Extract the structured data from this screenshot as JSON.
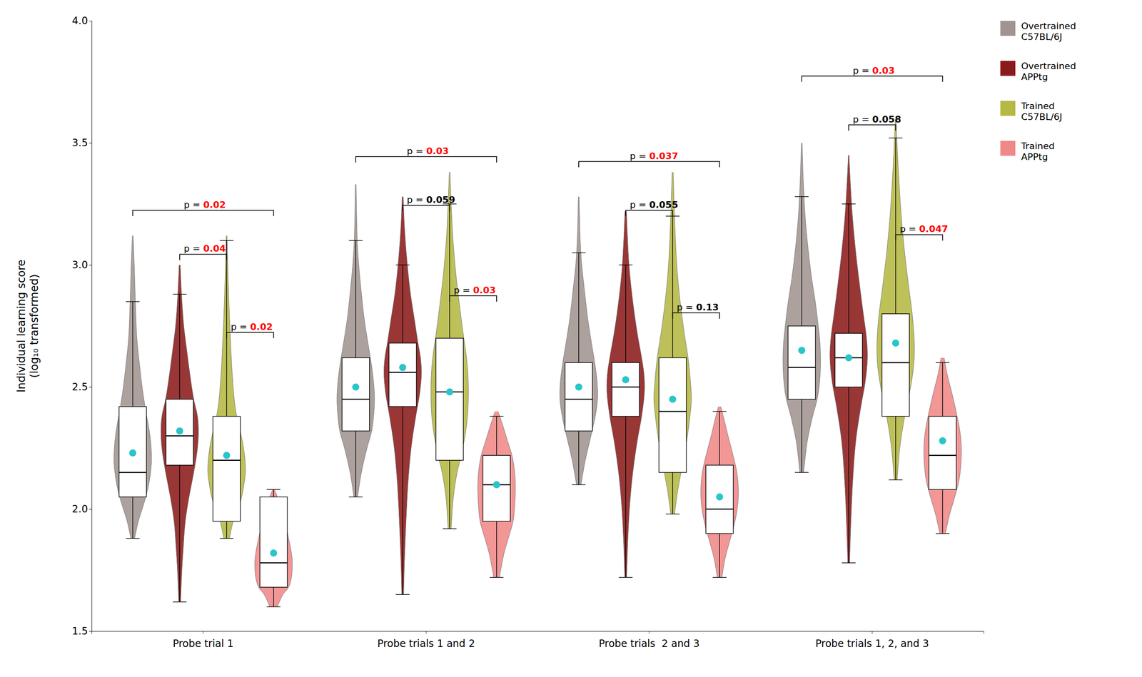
{
  "chart_data": {
    "type": "violin",
    "ylabel": "Individual learning score\n(log₁₀ transformed)",
    "categories": [
      "Probe trial 1",
      "Probe trials 1 and 2",
      "Probe trials  2 and 3",
      "Probe trials 1, 2, and 3"
    ],
    "ylim": [
      1.5,
      4.0
    ],
    "yticks": [
      1.5,
      {
        "value": 2,
        "label": "2.0"
      },
      2.5,
      {
        "value": 3,
        "label": "3.0"
      },
      3.5,
      {
        "value": 4,
        "label": "4.0"
      }
    ],
    "grid": false,
    "legend": "upper right",
    "color": "#29c5c8",
    "series": [
      {
        "name": "Overtrained\nC57BL/6J",
        "color": "#a09490",
        "values": [
          {
            "median": 2.15,
            "q1": 2.05,
            "q3": 2.42,
            "mean": 2.23,
            "whislo": 1.88,
            "whishi": 2.85,
            "kde_y": [
              1.88,
              1.95,
              2.0,
              2.05,
              2.1,
              2.15,
              2.2,
              2.25,
              2.3,
              2.35,
              2.4,
              2.5,
              2.6,
              2.7,
              2.85,
              3.0,
              3.12
            ],
            "kde_w": [
              0.1,
              0.3,
              0.5,
              0.7,
              0.85,
              0.95,
              1.0,
              0.98,
              0.92,
              0.82,
              0.7,
              0.5,
              0.35,
              0.22,
              0.14,
              0.08,
              0.02
            ]
          },
          {
            "median": 2.45,
            "q1": 2.32,
            "q3": 2.62,
            "mean": 2.5,
            "whislo": 2.05,
            "whishi": 3.1,
            "kde_y": [
              2.05,
              2.15,
              2.25,
              2.32,
              2.38,
              2.45,
              2.52,
              2.6,
              2.68,
              2.78,
              2.9,
              3.0,
              3.1,
              3.33
            ],
            "kde_w": [
              0.1,
              0.3,
              0.6,
              0.85,
              0.95,
              1.0,
              0.95,
              0.82,
              0.65,
              0.45,
              0.28,
              0.16,
              0.08,
              0.02
            ]
          },
          {
            "median": 2.45,
            "q1": 2.32,
            "q3": 2.6,
            "mean": 2.5,
            "whislo": 2.1,
            "whishi": 3.05,
            "kde_y": [
              2.1,
              2.2,
              2.3,
              2.38,
              2.45,
              2.52,
              2.6,
              2.68,
              2.78,
              2.9,
              3.0,
              3.1,
              3.28
            ],
            "kde_w": [
              0.12,
              0.35,
              0.65,
              0.88,
              1.0,
              0.98,
              0.85,
              0.68,
              0.48,
              0.3,
              0.16,
              0.08,
              0.02
            ]
          },
          {
            "median": 2.58,
            "q1": 2.45,
            "q3": 2.75,
            "mean": 2.65,
            "whislo": 2.15,
            "whishi": 3.28,
            "kde_y": [
              2.15,
              2.28,
              2.38,
              2.45,
              2.52,
              2.6,
              2.68,
              2.75,
              2.85,
              2.95,
              3.08,
              3.2,
              3.35,
              3.5
            ],
            "kde_w": [
              0.1,
              0.3,
              0.58,
              0.82,
              0.95,
              1.0,
              0.97,
              0.88,
              0.72,
              0.52,
              0.32,
              0.18,
              0.08,
              0.02
            ]
          }
        ]
      },
      {
        "name": "Overtrained\nAPPtg",
        "color": "#8b1a1a",
        "values": [
          {
            "median": 2.3,
            "q1": 2.18,
            "q3": 2.45,
            "mean": 2.32,
            "whislo": 1.62,
            "whishi": 2.88,
            "kde_y": [
              1.62,
              1.75,
              1.85,
              1.95,
              2.05,
              2.15,
              2.25,
              2.32,
              2.38,
              2.45,
              2.55,
              2.65,
              2.75,
              2.88,
              3.0
            ],
            "kde_w": [
              0.05,
              0.12,
              0.2,
              0.3,
              0.5,
              0.75,
              0.95,
              1.0,
              0.95,
              0.75,
              0.55,
              0.38,
              0.22,
              0.1,
              0.03
            ]
          },
          {
            "median": 2.56,
            "q1": 2.42,
            "q3": 2.68,
            "mean": 2.58,
            "whislo": 1.65,
            "whishi": 3.0,
            "kde_y": [
              1.65,
              1.8,
              1.95,
              2.1,
              2.25,
              2.38,
              2.48,
              2.56,
              2.62,
              2.68,
              2.78,
              2.88,
              3.0,
              3.15,
              3.28
            ],
            "kde_w": [
              0.05,
              0.1,
              0.18,
              0.28,
              0.45,
              0.7,
              0.92,
              1.0,
              0.95,
              0.82,
              0.62,
              0.42,
              0.25,
              0.1,
              0.03
            ]
          },
          {
            "median": 2.5,
            "q1": 2.38,
            "q3": 2.6,
            "mean": 2.53,
            "whislo": 1.72,
            "whishi": 3.0,
            "kde_y": [
              1.72,
              1.88,
              2.02,
              2.15,
              2.28,
              2.38,
              2.48,
              2.55,
              2.62,
              2.72,
              2.85,
              3.0,
              3.22
            ],
            "kde_w": [
              0.05,
              0.12,
              0.22,
              0.38,
              0.62,
              0.85,
              1.0,
              0.98,
              0.85,
              0.62,
              0.38,
              0.18,
              0.04
            ]
          },
          {
            "median": 2.62,
            "q1": 2.5,
            "q3": 2.72,
            "mean": 2.62,
            "whislo": 1.78,
            "whishi": 3.25,
            "kde_y": [
              1.78,
              1.95,
              2.12,
              2.28,
              2.42,
              2.52,
              2.62,
              2.7,
              2.8,
              2.92,
              3.05,
              3.2,
              3.35,
              3.45
            ],
            "kde_w": [
              0.05,
              0.12,
              0.22,
              0.38,
              0.65,
              0.88,
              1.0,
              0.95,
              0.78,
              0.58,
              0.38,
              0.2,
              0.08,
              0.02
            ]
          }
        ]
      },
      {
        "name": "Trained\nC57BL/6J",
        "color": "#b5b842",
        "values": [
          {
            "median": 2.2,
            "q1": 1.95,
            "q3": 2.38,
            "mean": 2.22,
            "whislo": 1.88,
            "whishi": 3.1,
            "kde_y": [
              1.88,
              1.95,
              2.0,
              2.05,
              2.1,
              2.15,
              2.2,
              2.25,
              2.3,
              2.35,
              2.42,
              2.55,
              2.7,
              2.85,
              3.0,
              3.12
            ],
            "kde_w": [
              0.15,
              0.35,
              0.6,
              0.8,
              0.92,
              1.0,
              0.98,
              0.9,
              0.78,
              0.62,
              0.45,
              0.3,
              0.2,
              0.12,
              0.06,
              0.02
            ]
          },
          {
            "median": 2.48,
            "q1": 2.2,
            "q3": 2.7,
            "mean": 2.48,
            "whislo": 1.92,
            "whishi": 3.25,
            "kde_y": [
              1.92,
              2.05,
              2.15,
              2.22,
              2.3,
              2.38,
              2.48,
              2.58,
              2.65,
              2.72,
              2.82,
              2.95,
              3.1,
              3.25,
              3.38
            ],
            "kde_w": [
              0.08,
              0.2,
              0.4,
              0.62,
              0.82,
              0.95,
              1.0,
              0.95,
              0.85,
              0.72,
              0.55,
              0.35,
              0.18,
              0.08,
              0.02
            ]
          },
          {
            "median": 2.4,
            "q1": 2.15,
            "q3": 2.62,
            "mean": 2.45,
            "whislo": 1.98,
            "whishi": 3.2,
            "kde_y": [
              1.98,
              2.08,
              2.18,
              2.28,
              2.38,
              2.45,
              2.52,
              2.62,
              2.72,
              2.85,
              3.0,
              3.2,
              3.38
            ],
            "kde_w": [
              0.1,
              0.28,
              0.52,
              0.75,
              0.92,
              1.0,
              0.95,
              0.82,
              0.62,
              0.4,
              0.22,
              0.1,
              0.03
            ]
          },
          {
            "median": 2.6,
            "q1": 2.38,
            "q3": 2.8,
            "mean": 2.68,
            "whislo": 2.12,
            "whishi": 3.52,
            "kde_y": [
              2.12,
              2.25,
              2.38,
              2.48,
              2.58,
              2.65,
              2.72,
              2.8,
              2.92,
              3.05,
              3.2,
              3.38,
              3.52,
              3.6
            ],
            "kde_w": [
              0.08,
              0.22,
              0.48,
              0.75,
              0.95,
              1.0,
              0.97,
              0.88,
              0.68,
              0.48,
              0.3,
              0.15,
              0.06,
              0.02
            ]
          }
        ]
      },
      {
        "name": "Trained\nAPPtg",
        "color": "#f08888",
        "values": [
          {
            "median": 1.78,
            "q1": 1.68,
            "q3": 2.05,
            "mean": 1.82,
            "whislo": 1.6,
            "whishi": 2.08,
            "kde_y": [
              1.6,
              1.65,
              1.68,
              1.72,
              1.78,
              1.82,
              1.88,
              1.95,
              2.0,
              2.05,
              2.08
            ],
            "kde_w": [
              0.2,
              0.5,
              0.8,
              0.95,
              1.0,
              0.95,
              0.8,
              0.6,
              0.4,
              0.2,
              0.05
            ]
          },
          {
            "median": 2.1,
            "q1": 1.95,
            "q3": 2.22,
            "mean": 2.1,
            "whislo": 1.72,
            "whishi": 2.38,
            "kde_y": [
              1.72,
              1.82,
              1.9,
              1.95,
              2.02,
              2.1,
              2.16,
              2.22,
              2.28,
              2.35,
              2.4
            ],
            "kde_w": [
              0.15,
              0.4,
              0.7,
              0.88,
              0.97,
              1.0,
              0.95,
              0.82,
              0.58,
              0.3,
              0.08
            ]
          },
          {
            "median": 2.0,
            "q1": 1.9,
            "q3": 2.18,
            "mean": 2.05,
            "whislo": 1.72,
            "whishi": 2.4,
            "kde_y": [
              1.72,
              1.8,
              1.88,
              1.95,
              2.02,
              2.08,
              2.15,
              2.22,
              2.3,
              2.38,
              2.42
            ],
            "kde_w": [
              0.12,
              0.3,
              0.58,
              0.82,
              0.97,
              1.0,
              0.92,
              0.72,
              0.45,
              0.2,
              0.06
            ]
          },
          {
            "median": 2.22,
            "q1": 2.08,
            "q3": 2.38,
            "mean": 2.28,
            "whislo": 1.9,
            "whishi": 2.6,
            "kde_y": [
              1.9,
              1.98,
              2.05,
              2.12,
              2.18,
              2.25,
              2.32,
              2.4,
              2.48,
              2.55,
              2.62
            ],
            "kde_w": [
              0.15,
              0.38,
              0.65,
              0.88,
              0.97,
              1.0,
              0.92,
              0.72,
              0.48,
              0.25,
              0.08
            ]
          }
        ]
      }
    ],
    "annotations": [
      [
        {
          "pair": [
            0,
            3
          ],
          "y": 3.2,
          "text": "p = ",
          "p_value": "0.02",
          "color": "red"
        },
        {
          "pair": [
            1,
            2
          ],
          "y": 3.02,
          "text": "p = ",
          "p_value": "0.04",
          "color": "red"
        },
        {
          "pair": [
            2,
            3
          ],
          "y": 2.7,
          "text": "p = ",
          "p_value": "0.02",
          "color": "red"
        }
      ],
      [
        {
          "pair": [
            0,
            3
          ],
          "y": 3.42,
          "text": "p = ",
          "p_value": "0.03",
          "color": "red"
        },
        {
          "pair": [
            1,
            2
          ],
          "y": 3.22,
          "text": "p = ",
          "p_value": "0.059",
          "color": "black"
        },
        {
          "pair": [
            2,
            3
          ],
          "y": 2.85,
          "text": "p = ",
          "p_value": "0.03",
          "color": "red"
        }
      ],
      [
        {
          "pair": [
            0,
            3
          ],
          "y": 3.4,
          "text": "p = ",
          "p_value": "0.037",
          "color": "red"
        },
        {
          "pair": [
            1,
            2
          ],
          "y": 3.2,
          "text": "p = ",
          "p_value": "0.055",
          "color": "black"
        },
        {
          "pair": [
            2,
            3
          ],
          "y": 2.78,
          "text": "p = ",
          "p_value": "0.13",
          "color": "black"
        }
      ],
      [
        {
          "pair": [
            0,
            3
          ],
          "y": 3.75,
          "text": "p = ",
          "p_value": "0.03",
          "color": "red"
        },
        {
          "pair": [
            1,
            2
          ],
          "y": 3.55,
          "text": "p = ",
          "p_value": "0.058",
          "color": "black"
        },
        {
          "pair": [
            2,
            3
          ],
          "y": 3.1,
          "text": "p = ",
          "p_value": "0.047",
          "color": "red"
        }
      ]
    ]
  }
}
